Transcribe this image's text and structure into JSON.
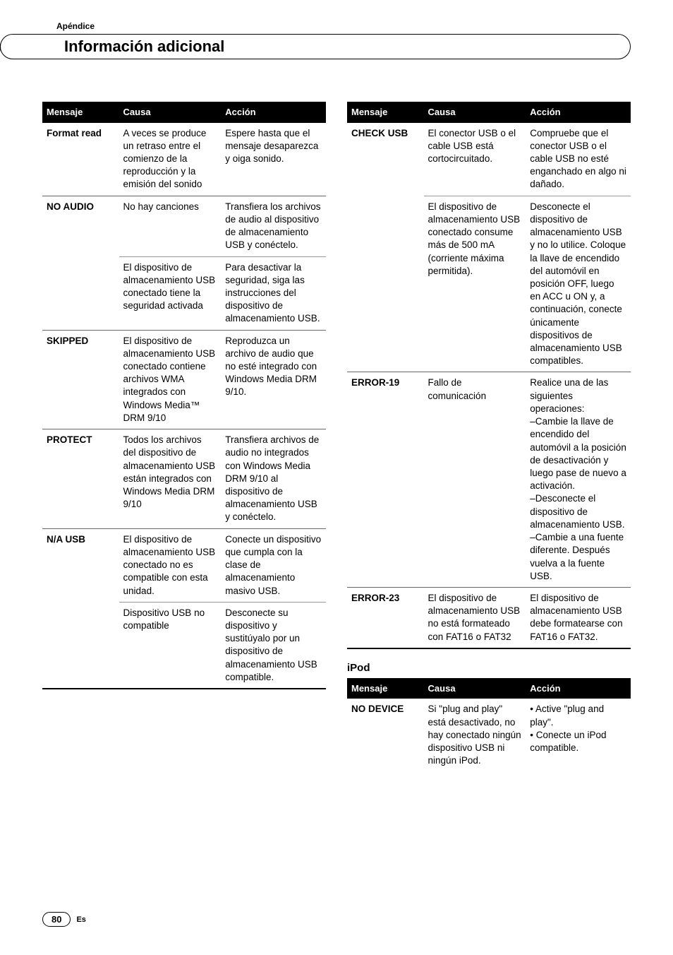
{
  "appendix_label": "Apéndice",
  "page_title": "Información adicional",
  "footer": {
    "page_num": "80",
    "lang": "Es"
  },
  "left_table": {
    "headers": {
      "mensaje": "Mensaje",
      "causa": "Causa",
      "accion": "Acción"
    },
    "rows": [
      {
        "mensaje": "Format read",
        "causa": "A veces se produce un retraso entre el comienzo de la reproducción y la emisión del sonido",
        "accion": "Espere hasta que el mensaje desaparezca y oiga sonido."
      },
      {
        "mensaje": "NO AUDIO",
        "causa": "No hay canciones",
        "accion": "Transfiera los archivos de audio al dispositivo de almacenamiento USB y conéctelo."
      },
      {
        "mensaje": "",
        "causa": "El dispositivo de almacenamiento USB conectado tiene la seguridad activada",
        "accion": "Para desactivar la seguridad, siga las instrucciones del dispositivo de almacenamiento USB."
      },
      {
        "mensaje": "SKIPPED",
        "causa": "El dispositivo de almacenamiento USB conectado contiene archivos WMA integrados con Windows Media™ DRM 9/10",
        "accion": "Reproduzca un archivo de audio que no esté integrado con Windows Media DRM 9/10."
      },
      {
        "mensaje": "PROTECT",
        "causa": "Todos los archivos del dispositivo de almacenamiento USB están integrados con Windows Media DRM 9/10",
        "accion": "Transfiera archivos de audio no integrados con Windows Media DRM 9/10 al dispositivo de almacenamiento USB y conéctelo."
      },
      {
        "mensaje": "N/A USB",
        "causa": "El dispositivo de almacenamiento USB conectado no es compatible con esta unidad.",
        "accion": "Conecte un dispositivo que cumpla con la clase de almacenamiento masivo USB."
      },
      {
        "mensaje": "",
        "causa": "Dispositivo USB no compatible",
        "accion": "Desconecte su dispositivo y sustitúyalo por un dispositivo de almacenamiento USB compatible."
      }
    ]
  },
  "right_table": {
    "headers": {
      "mensaje": "Mensaje",
      "causa": "Causa",
      "accion": "Acción"
    },
    "rows": [
      {
        "mensaje": "CHECK USB",
        "causa": "El conector USB o el cable USB está cortocircuitado.",
        "accion": "Compruebe que el conector USB o el cable USB no esté enganchado en algo ni dañado."
      },
      {
        "mensaje": "",
        "causa": "El dispositivo de almacenamiento USB conectado consume más de 500 mA (corriente máxima permitida).",
        "accion": "Desconecte el dispositivo de almacenamiento USB y no lo utilice. Coloque la llave de encendido del automóvil en posición OFF, luego en ACC u ON y, a continuación, conecte únicamente dispositivos de almacenamiento USB compatibles."
      },
      {
        "mensaje": "ERROR-19",
        "causa": "Fallo de comunicación",
        "accion": "Realice una de las siguientes operaciones:\n–Cambie la llave de encendido del automóvil a la posición de desactivación y luego pase de nuevo a activación.\n–Desconecte el dispositivo de almacenamiento USB.\n–Cambie a una fuente diferente. Después vuelva a la fuente USB."
      },
      {
        "mensaje": "ERROR-23",
        "causa": "El dispositivo de almacenamiento USB no está formateado con FAT16 o FAT32",
        "accion": "El dispositivo de almacenamiento USB debe formatearse con FAT16 o FAT32."
      }
    ]
  },
  "ipod_section": {
    "label": "iPod",
    "headers": {
      "mensaje": "Mensaje",
      "causa": "Causa",
      "accion": "Acción"
    },
    "rows": [
      {
        "mensaje": "NO DEVICE",
        "causa": "Si \"plug and play\" está desactivado, no hay conectado ningún dispositivo USB ni ningún iPod.",
        "accion": "• Active \"plug and play\".\n• Conecte un iPod compatible."
      }
    ]
  }
}
